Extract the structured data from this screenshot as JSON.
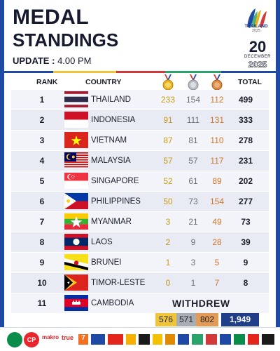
{
  "header": {
    "title_line1": "MEDAL",
    "title_line2": "STANDINGS",
    "update_label": "UPDATE :",
    "update_time": "4.00 PM",
    "logo_country": "THAILAND",
    "logo_year": "2025",
    "date_day": "20",
    "date_month": "DECEMBER",
    "date_year": "2025"
  },
  "columns": {
    "rank": "RANK",
    "country": "COUNTRY",
    "total": "TOTAL",
    "gold_icon": "gold-medal-icon",
    "silver_icon": "silver-medal-icon",
    "bronze_icon": "bronze-medal-icon"
  },
  "colors": {
    "gold": "#c79a18",
    "silver": "#6c6f75",
    "bronze": "#d1762a",
    "brand_blue": "#1f3f8a"
  },
  "rows": [
    {
      "rank": "1",
      "country": "THAILAND",
      "flag": "thailand-flag",
      "gold": "233",
      "silver": "154",
      "bronze": "112",
      "total": "499"
    },
    {
      "rank": "2",
      "country": "INDONESIA",
      "flag": "indonesia-flag",
      "gold": "91",
      "silver": "111",
      "bronze": "131",
      "total": "333"
    },
    {
      "rank": "3",
      "country": "VIETNAM",
      "flag": "vietnam-flag",
      "gold": "87",
      "silver": "81",
      "bronze": "110",
      "total": "278"
    },
    {
      "rank": "4",
      "country": "MALAYSIA",
      "flag": "malaysia-flag",
      "gold": "57",
      "silver": "57",
      "bronze": "117",
      "total": "231"
    },
    {
      "rank": "5",
      "country": "SINGAPORE",
      "flag": "singapore-flag",
      "gold": "52",
      "silver": "61",
      "bronze": "89",
      "total": "202"
    },
    {
      "rank": "6",
      "country": "PHILIPPINES",
      "flag": "philippines-flag",
      "gold": "50",
      "silver": "73",
      "bronze": "154",
      "total": "277"
    },
    {
      "rank": "7",
      "country": "MYANMAR",
      "flag": "myanmar-flag",
      "gold": "3",
      "silver": "21",
      "bronze": "49",
      "total": "73"
    },
    {
      "rank": "8",
      "country": "LAOS",
      "flag": "laos-flag",
      "gold": "2",
      "silver": "9",
      "bronze": "28",
      "total": "39"
    },
    {
      "rank": "9",
      "country": "BRUNEI",
      "flag": "brunei-flag",
      "gold": "1",
      "silver": "3",
      "bronze": "5",
      "total": "9"
    },
    {
      "rank": "10",
      "country": "TIMOR-LESTE",
      "flag": "timor-leste-flag",
      "gold": "0",
      "silver": "1",
      "bronze": "7",
      "total": "8"
    },
    {
      "rank": "11",
      "country": "CAMBODIA",
      "flag": "cambodia-flag",
      "status": "WITHDREW"
    }
  ],
  "totals": {
    "gold": "576",
    "silver": "571",
    "bronze": "802",
    "total": "1,949"
  },
  "sponsors": {
    "logos": [
      "sponsor-logo-1",
      "sponsor-logo-2",
      "sponsor-logo-3",
      "sponsor-logo-4",
      "sponsor-logo-5",
      "sponsor-logo-6",
      "sponsor-logo-7",
      "sponsor-logo-8",
      "sponsor-logo-9",
      "sponsor-logo-10",
      "sponsor-logo-11",
      "sponsor-logo-12",
      "sponsor-logo-13",
      "sponsor-logo-14",
      "sponsor-logo-15",
      "sponsor-logo-16",
      "sponsor-logo-17",
      "sponsor-logo-18",
      "sponsor-logo-19",
      "sponsor-logo-20"
    ],
    "logo_texts": [
      "CP",
      "makro",
      "true",
      "7",
      "ONE",
      "Coca-Cola"
    ]
  }
}
